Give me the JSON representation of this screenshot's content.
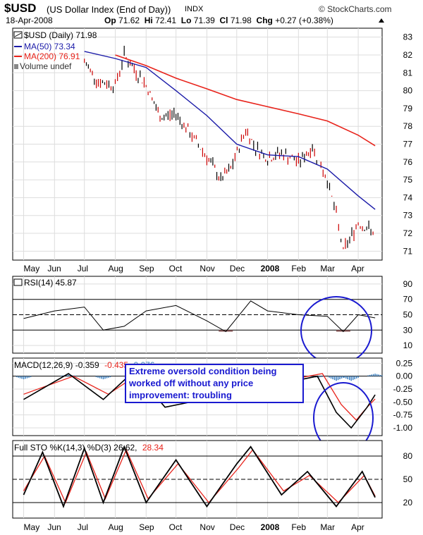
{
  "header": {
    "symbol": "$USD",
    "name": "(US Dollar Index (End of Day))",
    "exchange": "INDX",
    "brand": "© StockCharts.com",
    "date": "18-Apr-2008",
    "open_label": "Op",
    "open": "71.62",
    "high_label": "Hi",
    "high": "72.41",
    "low_label": "Lo",
    "low": "71.39",
    "close_label": "Cl",
    "close": "71.98",
    "change_label": "Chg",
    "change": "+0.27 (+0.38%)"
  },
  "legend": {
    "price": "$USD (Daily) 71.98",
    "ma50": "MA(50) 73.34",
    "ma200": "MA(200) 76.91",
    "volume": "Volume undef"
  },
  "x_months": [
    "May",
    "Jun",
    "Jul",
    "Aug",
    "Sep",
    "Oct",
    "Nov",
    "Dec",
    "2008",
    "Feb",
    "Mar",
    "Apr"
  ],
  "rsi_label": "RSI(14) 45.87",
  "macd": {
    "prefix": "MACD(12,26,9) -0.359",
    "signal": "-0.435",
    "hist": "0.076"
  },
  "sto": {
    "prefix": "Full STO %K(14,3) %D(3) 26.62,",
    "d": "28.34"
  },
  "annotation": "Extreme oversold condition being worked off without any price improvement: troubling",
  "colors": {
    "ma50": "#1a1aa8",
    "ma200": "#e8231b",
    "up": "#000000",
    "down": "#cc0000",
    "rsi_fill": "#8b5a5a",
    "macd_hist": "#3a7ebf",
    "annotation_border": "#1a1ad0"
  },
  "chart_data": [
    {
      "type": "line",
      "title": "$USD (US Dollar Index (End of Day)) INDX",
      "ylim": [
        70.5,
        83.5
      ],
      "y_ticks": [
        71,
        72,
        73,
        74,
        75,
        76,
        77,
        78,
        79,
        80,
        81,
        82,
        83
      ],
      "series": [
        {
          "name": "$USD (Daily)",
          "x": [
            "2007-07-01",
            "2007-07-15",
            "2007-08-01",
            "2007-08-10",
            "2007-08-20",
            "2007-09-01",
            "2007-09-15",
            "2007-10-01",
            "2007-10-15",
            "2007-11-01",
            "2007-11-15",
            "2007-11-25",
            "2007-12-10",
            "2007-12-20",
            "2008-01-01",
            "2008-01-15",
            "2008-02-01",
            "2008-02-15",
            "2008-03-01",
            "2008-03-10",
            "2008-03-17",
            "2008-04-01",
            "2008-04-18"
          ],
          "values": [
            81.6,
            80.5,
            80.3,
            82.0,
            81.2,
            80.3,
            78.5,
            78.7,
            77.6,
            76.3,
            75.0,
            75.6,
            77.8,
            76.8,
            76.2,
            76.5,
            76.0,
            76.8,
            75.0,
            73.0,
            71.0,
            72.6,
            71.98
          ]
        },
        {
          "name": "MA(50)",
          "x": [
            "2007-07-01",
            "2007-08-01",
            "2007-09-01",
            "2007-10-01",
            "2007-11-01",
            "2007-12-01",
            "2008-01-01",
            "2008-02-01",
            "2008-03-01",
            "2008-04-01",
            "2008-04-18"
          ],
          "values": [
            82.2,
            81.8,
            81.3,
            80.0,
            78.6,
            77.0,
            76.4,
            76.3,
            75.6,
            74.1,
            73.34
          ]
        },
        {
          "name": "MA(200)",
          "x": [
            "2007-08-01",
            "2007-09-01",
            "2007-10-01",
            "2007-11-01",
            "2007-12-01",
            "2008-01-01",
            "2008-02-01",
            "2008-03-01",
            "2008-04-01",
            "2008-04-18"
          ],
          "values": [
            82.0,
            81.4,
            80.7,
            80.1,
            79.5,
            79.1,
            78.7,
            78.3,
            77.5,
            76.91
          ]
        }
      ]
    },
    {
      "type": "line",
      "title": "RSI(14) 45.87",
      "ylim": [
        0,
        100
      ],
      "y_ticks": [
        10,
        30,
        50,
        70,
        90
      ],
      "series": [
        {
          "name": "RSI(14)",
          "x": [
            "2007-05-01",
            "2007-06-01",
            "2007-07-01",
            "2007-07-20",
            "2007-08-10",
            "2007-09-01",
            "2007-10-01",
            "2007-11-01",
            "2007-11-20",
            "2007-12-15",
            "2008-01-01",
            "2008-02-01",
            "2008-03-01",
            "2008-03-17",
            "2008-04-01",
            "2008-04-18"
          ],
          "values": [
            45,
            55,
            60,
            30,
            35,
            55,
            62,
            42,
            28,
            68,
            55,
            50,
            48,
            28,
            50,
            45.87
          ]
        }
      ]
    },
    {
      "type": "line",
      "title": "MACD(12,26,9) -0.359 -0.435 0.076",
      "ylim": [
        -1.15,
        0.35
      ],
      "y_ticks": [
        0.25,
        0,
        -0.25,
        -0.5,
        -0.75,
        -1.0
      ],
      "series": [
        {
          "name": "MACD",
          "x": [
            "2007-05-01",
            "2007-06-15",
            "2007-07-20",
            "2007-08-20",
            "2007-09-20",
            "2008-02-20",
            "2008-03-10",
            "2008-03-25",
            "2008-04-10",
            "2008-04-18"
          ],
          "values": [
            -0.45,
            0.05,
            -0.45,
            0.1,
            -0.6,
            0.0,
            -0.7,
            -1.0,
            -0.6,
            -0.36
          ]
        },
        {
          "name": "Signal",
          "x": [
            "2007-05-01",
            "2007-06-20",
            "2007-07-25",
            "2007-08-25",
            "2007-09-25",
            "2008-02-25",
            "2008-03-15",
            "2008-03-30",
            "2008-04-10",
            "2008-04-18"
          ],
          "values": [
            -0.35,
            0.0,
            -0.35,
            0.05,
            -0.5,
            0.05,
            -0.55,
            -0.85,
            -0.6,
            -0.44
          ]
        }
      ]
    },
    {
      "type": "line",
      "title": "Full STO %K(14,3) %D(3) 26.62, 28.34",
      "ylim": [
        0,
        100
      ],
      "y_ticks": [
        20,
        50,
        80
      ],
      "series": [
        {
          "name": "%K",
          "x": [
            "2007-05-01",
            "2007-05-20",
            "2007-06-10",
            "2007-07-01",
            "2007-07-20",
            "2007-08-10",
            "2007-09-01",
            "2007-10-01",
            "2007-11-01",
            "2007-12-01",
            "2007-12-15",
            "2008-01-15",
            "2008-02-10",
            "2008-03-10",
            "2008-04-05",
            "2008-04-18"
          ],
          "values": [
            30,
            85,
            15,
            90,
            20,
            92,
            20,
            75,
            15,
            70,
            92,
            30,
            60,
            15,
            60,
            26.62
          ]
        },
        {
          "name": "%D",
          "x": [
            "2007-05-01",
            "2007-05-22",
            "2007-06-12",
            "2007-07-03",
            "2007-07-22",
            "2007-08-12",
            "2007-09-03",
            "2007-10-03",
            "2007-11-03",
            "2007-12-03",
            "2007-12-17",
            "2008-01-17",
            "2008-02-12",
            "2008-03-12",
            "2008-04-07",
            "2008-04-18"
          ],
          "values": [
            35,
            80,
            20,
            85,
            25,
            88,
            25,
            70,
            20,
            65,
            88,
            35,
            55,
            20,
            55,
            28.34
          ]
        }
      ]
    }
  ]
}
